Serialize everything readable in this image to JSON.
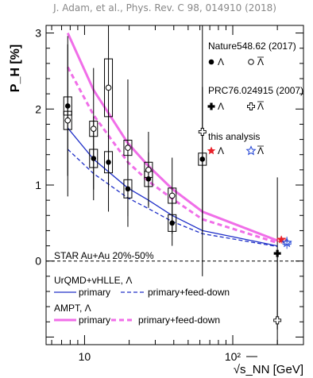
{
  "citation": "J. Adam, et al., Phys. Rev. C 98, 014910 (2018)",
  "chart_data": {
    "type": "scatter",
    "xscale": "log",
    "xlim": [
      5.5,
      300
    ],
    "ylim": [
      -1.1,
      3.1
    ],
    "xticks": [
      {
        "v": 10,
        "label": "10"
      },
      {
        "v": 100,
        "label": "10²"
      }
    ],
    "yticks": [
      0,
      1,
      2,
      3
    ],
    "ylabel": "P_H [%]",
    "xlabel": "√s_NN [GeV]",
    "annotation": "STAR Au+Au 20%-50%",
    "legend_groups": {
      "nature": {
        "title": "Nature548.62 (2017)",
        "lambda": "Λ",
        "antilambda": "Λ̄"
      },
      "prc": {
        "title": "PRC76.024915 (2007)",
        "lambda": "Λ",
        "antilambda": "Λ̄"
      },
      "this": {
        "title": "this analysis",
        "lambda": "Λ",
        "antilambda": "Λ̄"
      },
      "hydro": {
        "title": "UrQMD+vHLLE, Λ",
        "primary": "primary",
        "feeddown": "primary+feed-down"
      },
      "ampt": {
        "title": "AMPT, Λ",
        "primary": "primary",
        "feeddown": "primary+feed-down"
      }
    },
    "series": [
      {
        "name": "Nature548.62 (2017) Λ",
        "marker": "filled-circle",
        "color": "#000000",
        "points": [
          {
            "x": 7.7,
            "y": 2.04,
            "err": 0.92,
            "sys": 0.12
          },
          {
            "x": 11.5,
            "y": 1.35,
            "err": 0.55,
            "sys": 0.12
          },
          {
            "x": 14.5,
            "y": 1.3,
            "err": 0.65,
            "sys": 0.14
          },
          {
            "x": 19.6,
            "y": 0.95,
            "err": 0.5,
            "sys": 0.12
          },
          {
            "x": 27,
            "y": 1.08,
            "err": 0.35,
            "sys": 0.1
          },
          {
            "x": 39,
            "y": 0.5,
            "err": 0.3,
            "sys": 0.11
          },
          {
            "x": 62.4,
            "y": 1.34,
            "err": 0.95,
            "sys": 0.08
          }
        ]
      },
      {
        "name": "Nature548.62 (2017) Λ̄",
        "marker": "open-circle",
        "color": "#000000",
        "points": [
          {
            "x": 7.7,
            "y": 1.85,
            "err": 1.0,
            "sys": 0.12
          },
          {
            "x": 11.5,
            "y": 1.74,
            "err": 0.8,
            "sys": 0.1
          },
          {
            "x": 14.5,
            "y": 2.28,
            "err": 1.3,
            "sys": 0.38
          },
          {
            "x": 19.6,
            "y": 1.49,
            "err": 0.9,
            "sys": 0.1
          },
          {
            "x": 27,
            "y": 1.2,
            "err": 0.5,
            "sys": 0.1
          },
          {
            "x": 39,
            "y": 0.86,
            "err": 0.5,
            "sys": 0.1
          }
        ]
      },
      {
        "name": "PRC76.024915 (2007) Λ",
        "marker": "filled-cross",
        "color": "#000000",
        "points": [
          {
            "x": 200,
            "y": 0.1,
            "err": 1.0,
            "sys": 0
          }
        ]
      },
      {
        "name": "PRC76.024915 (2007) Λ̄",
        "marker": "open-cross",
        "color": "#000000",
        "points": [
          {
            "x": 62.4,
            "y": 1.7,
            "err": 1.9,
            "sys": 0
          },
          {
            "x": 200,
            "y": -0.78,
            "err": 0.9,
            "sys": 0
          }
        ]
      },
      {
        "name": "this analysis Λ",
        "marker": "filled-star",
        "color": "#e8212a",
        "points": [
          {
            "x": 200,
            "y": 0.28,
            "err": 0.05,
            "sys": 0.02
          }
        ]
      },
      {
        "name": "this analysis Λ̄",
        "marker": "open-star",
        "color": "#2f4fd8",
        "points": [
          {
            "x": 200,
            "y": 0.24,
            "err": 0.08,
            "sys": 0.02
          }
        ]
      }
    ],
    "curves": [
      {
        "name": "UrQMD+vHLLE Λ primary",
        "color": "#2030c8",
        "style": "solid",
        "width": 1.3,
        "points": [
          [
            7.7,
            1.75
          ],
          [
            11.5,
            1.34
          ],
          [
            19.6,
            0.96
          ],
          [
            27,
            0.8
          ],
          [
            39,
            0.6
          ],
          [
            62.4,
            0.4
          ],
          [
            200,
            0.2
          ]
        ]
      },
      {
        "name": "UrQMD+vHLLE Λ primary+feed-down",
        "color": "#2030c8",
        "style": "dashed",
        "width": 1.3,
        "points": [
          [
            7.7,
            1.47
          ],
          [
            11.5,
            1.15
          ],
          [
            19.6,
            0.83
          ],
          [
            27,
            0.69
          ],
          [
            39,
            0.52
          ],
          [
            62.4,
            0.36
          ],
          [
            200,
            0.19
          ]
        ]
      },
      {
        "name": "AMPT Λ primary",
        "color": "#f06ee8",
        "style": "solid",
        "width": 3,
        "points": [
          [
            7.7,
            3.0
          ],
          [
            11.5,
            2.25
          ],
          [
            19.6,
            1.55
          ],
          [
            27,
            1.25
          ],
          [
            39,
            0.95
          ],
          [
            62.4,
            0.65
          ],
          [
            200,
            0.27
          ]
        ]
      },
      {
        "name": "AMPT Λ primary+feed-down",
        "color": "#f06ee8",
        "style": "dashed",
        "width": 3,
        "points": [
          [
            7.7,
            2.55
          ],
          [
            11.5,
            1.92
          ],
          [
            19.6,
            1.3
          ],
          [
            27,
            1.05
          ],
          [
            39,
            0.82
          ],
          [
            62.4,
            0.55
          ],
          [
            200,
            0.24
          ]
        ]
      }
    ]
  }
}
